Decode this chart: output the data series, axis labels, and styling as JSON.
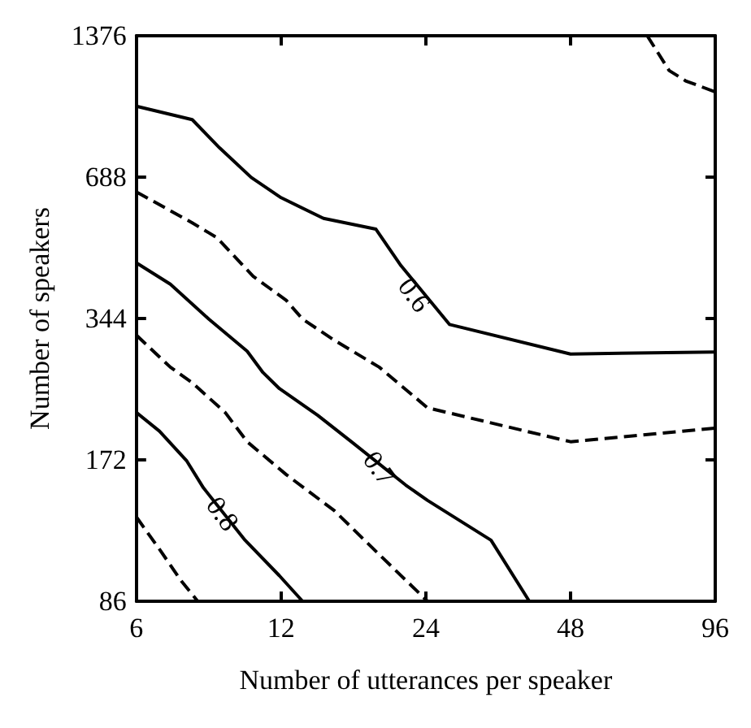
{
  "chart_data": {
    "type": "line",
    "xlabel": "Number of utterances per speaker",
    "ylabel": "Number of speakers",
    "log": "xy",
    "xlim": [
      6,
      96
    ],
    "xticks": [
      6,
      12,
      24,
      48,
      96
    ],
    "ylim": [
      86,
      1376
    ],
    "yticks": [
      86,
      172,
      344,
      688,
      1376
    ],
    "grid": false,
    "marker": "none",
    "series": [
      {
        "color": "#000000",
        "line_style": "dashed",
        "x": [
          69.3,
          77,
          83.3,
          96
        ],
        "values": [
          1376,
          1160,
          1103,
          1045
        ]
      },
      {
        "color": "#000000",
        "line_style": "solid",
        "x": [
          6,
          7.84,
          8.94,
          10.4,
          12,
          14.7,
          18.9,
          21.3,
          26.9,
          48,
          96
        ],
        "values": [
          974,
          912,
          794,
          687,
          622,
          562,
          533,
          446,
          334,
          289,
          292
        ]
      },
      {
        "color": "#000000",
        "line_style": "dashed",
        "x": [
          6,
          7.84,
          8.83,
          10.5,
          12.3,
          13.3,
          15.5,
          19.2,
          24.2,
          48,
          96
        ],
        "values": [
          640,
          550,
          511,
          423,
          376,
          343,
          309,
          271,
          222,
          188,
          201
        ]
      },
      {
        "color": "#000000",
        "line_style": "solid",
        "x": [
          6,
          7.06,
          8.49,
          10.2,
          11,
          11.9,
          14.3,
          16.8,
          21.8,
          24.2,
          32.8,
          39.4
        ],
        "values": [
          452,
          407,
          343,
          293,
          264,
          244,
          214,
          188,
          152,
          141,
          116,
          86
        ]
      },
      {
        "color": "#000000",
        "line_style": "dashed",
        "x": [
          6,
          7.06,
          7.84,
          9.18,
          10.2,
          12.3,
          15.5,
          18.7,
          24.2
        ],
        "values": [
          317,
          271,
          251,
          217,
          188,
          160,
          134,
          111,
          86
        ]
      },
      {
        "color": "#000000",
        "line_style": "solid",
        "x": [
          6,
          6.7,
          7.64,
          8.27,
          10.1,
          11.9,
          13.3
        ],
        "values": [
          217,
          198,
          171,
          150,
          116,
          97.5,
          86
        ]
      },
      {
        "color": "#000000",
        "line_style": "dashed",
        "x": [
          6,
          6.7,
          7.44,
          8.05
        ],
        "values": [
          130,
          111,
          95,
          86
        ]
      }
    ],
    "annotations": [
      {
        "text": "0.6",
        "x": 22.7,
        "y": 386
      },
      {
        "text": "0.7",
        "x": 19.2,
        "y": 165
      },
      {
        "text": "0.8",
        "x": 9.06,
        "y": 132
      }
    ]
  }
}
